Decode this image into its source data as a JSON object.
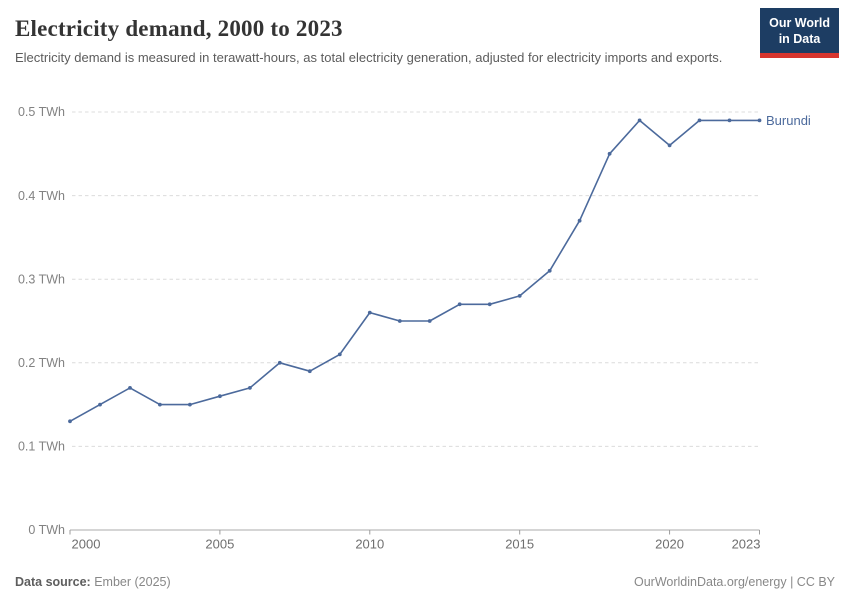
{
  "header": {
    "title": "Electricity demand, 2000 to 2023",
    "subtitle": "Electricity demand is measured in terawatt-hours, as total electricity generation, adjusted for electricity imports and exports.",
    "logo": {
      "line1": "Our World",
      "line2": "in Data",
      "bg_color": "#1d3d63",
      "stripe_color": "#d7352e"
    }
  },
  "chart_data": {
    "type": "line",
    "title": "Electricity demand, 2000 to 2023",
    "xlabel": "",
    "ylabel": "TWh",
    "xlim": [
      2000,
      2023
    ],
    "ylim": [
      0,
      0.5
    ],
    "grid": "horizontal-dashed",
    "legend_position": "end-of-line-label",
    "x_ticks": [
      2000,
      2005,
      2010,
      2015,
      2020,
      2023
    ],
    "y_ticks": [
      {
        "value": 0,
        "label": "0 TWh"
      },
      {
        "value": 0.1,
        "label": "0.1 TWh"
      },
      {
        "value": 0.2,
        "label": "0.2 TWh"
      },
      {
        "value": 0.3,
        "label": "0.3 TWh"
      },
      {
        "value": 0.4,
        "label": "0.4 TWh"
      },
      {
        "value": 0.5,
        "label": "0.5 TWh"
      }
    ],
    "series": [
      {
        "name": "Burundi",
        "color": "#4C6A9C",
        "x": [
          2000,
          2001,
          2002,
          2003,
          2004,
          2005,
          2006,
          2007,
          2008,
          2009,
          2010,
          2011,
          2012,
          2013,
          2014,
          2015,
          2016,
          2017,
          2018,
          2019,
          2020,
          2021,
          2022,
          2023
        ],
        "values": [
          0.13,
          0.15,
          0.17,
          0.15,
          0.15,
          0.16,
          0.17,
          0.2,
          0.19,
          0.21,
          0.26,
          0.25,
          0.25,
          0.27,
          0.27,
          0.28,
          0.31,
          0.37,
          0.45,
          0.49,
          0.46,
          0.49,
          0.49,
          0.49
        ]
      }
    ]
  },
  "footer": {
    "datasource_label": "Data source:",
    "datasource_value": "Ember (2025)",
    "credit": "OurWorldinData.org/energy | CC BY"
  }
}
